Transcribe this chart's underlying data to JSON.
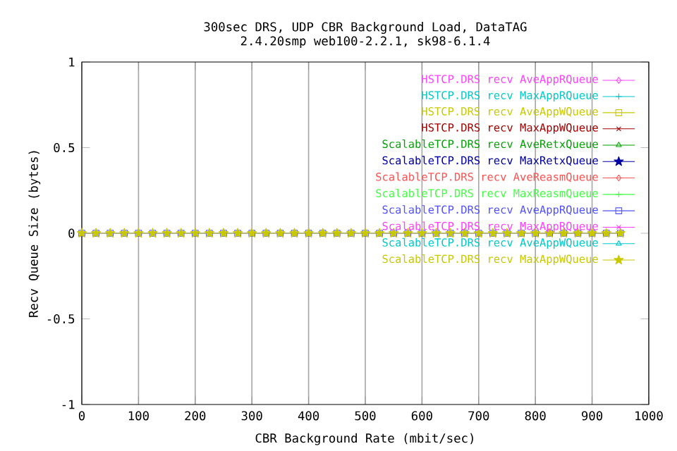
{
  "chart_data": {
    "type": "line",
    "title": "300sec DRS, UDP CBR Background Load, DataTAG",
    "subtitle": "2.4.20smp web100-2.2.1, sk98-6.1.4",
    "xlabel": "CBR Background Rate (mbit/sec)",
    "ylabel": "Recv Queue Size (bytes)",
    "x": [
      0,
      25,
      50,
      75,
      100,
      125,
      150,
      175,
      200,
      225,
      250,
      275,
      300,
      325,
      350,
      375,
      400,
      425,
      450,
      475,
      500,
      525,
      550,
      575,
      600,
      625,
      650,
      675,
      700,
      725,
      750,
      775,
      800,
      825,
      850,
      875,
      900,
      925,
      950
    ],
    "xlim": [
      0,
      1000
    ],
    "xticks": [
      0,
      100,
      200,
      300,
      400,
      500,
      600,
      700,
      800,
      900,
      1000
    ],
    "ylim": [
      -1,
      1
    ],
    "yticks": [
      -1,
      -0.5,
      0,
      0.5,
      1
    ],
    "grid": "x",
    "legend": "top right",
    "line_style": "solid",
    "series": [
      {
        "name": "HSTCP.DRS recv AveAppRQueue",
        "color": "#ff40ff",
        "marker": "diamond",
        "values": [
          null,
          null,
          null,
          null,
          null,
          null,
          null,
          null,
          null,
          null,
          null,
          null,
          null,
          null,
          null,
          null,
          null,
          null,
          null,
          null,
          null,
          null,
          null,
          null,
          null,
          null,
          null,
          null,
          null,
          null,
          null,
          null,
          null,
          null,
          null,
          null,
          null,
          null,
          null
        ]
      },
      {
        "name": "HSTCP.DRS recv MaxAppRQueue",
        "color": "#00c8c8",
        "marker": "plus",
        "values": [
          null,
          null,
          null,
          null,
          null,
          null,
          null,
          null,
          null,
          null,
          null,
          null,
          null,
          null,
          null,
          null,
          null,
          null,
          null,
          null,
          null,
          null,
          null,
          null,
          null,
          null,
          null,
          null,
          null,
          null,
          null,
          null,
          null,
          null,
          null,
          null,
          null,
          null,
          null
        ]
      },
      {
        "name": "HSTCP.DRS recv AveAppWQueue",
        "color": "#c8c800",
        "marker": "square",
        "values": [
          null,
          null,
          null,
          null,
          null,
          null,
          null,
          null,
          null,
          null,
          null,
          null,
          null,
          null,
          null,
          null,
          null,
          null,
          null,
          null,
          null,
          null,
          null,
          null,
          null,
          null,
          null,
          null,
          null,
          null,
          null,
          null,
          null,
          null,
          null,
          null,
          null,
          null,
          null
        ]
      },
      {
        "name": "HSTCP.DRS recv MaxAppWQueue",
        "color": "#a00000",
        "marker": "cross",
        "values": [
          null,
          null,
          null,
          null,
          null,
          null,
          null,
          null,
          null,
          null,
          null,
          null,
          null,
          null,
          null,
          null,
          null,
          null,
          null,
          null,
          null,
          null,
          null,
          null,
          null,
          null,
          null,
          null,
          null,
          null,
          null,
          null,
          null,
          null,
          null,
          null,
          null,
          null,
          null
        ]
      },
      {
        "name": "ScalableTCP.DRS recv AveRetxQueue",
        "color": "#00a000",
        "marker": "triangle",
        "values": [
          null,
          null,
          null,
          null,
          null,
          null,
          null,
          null,
          null,
          null,
          null,
          null,
          null,
          null,
          null,
          null,
          null,
          null,
          null,
          null,
          null,
          null,
          null,
          null,
          null,
          null,
          null,
          null,
          null,
          null,
          null,
          null,
          null,
          null,
          null,
          null,
          null,
          null,
          null
        ]
      },
      {
        "name": "ScalableTCP.DRS recv MaxRetxQueue",
        "color": "#0000a0",
        "marker": "star",
        "values": [
          null,
          null,
          null,
          null,
          null,
          null,
          null,
          null,
          null,
          null,
          null,
          null,
          null,
          null,
          null,
          null,
          null,
          null,
          null,
          null,
          null,
          null,
          null,
          null,
          null,
          null,
          null,
          null,
          null,
          null,
          null,
          null,
          null,
          null,
          null,
          null,
          null,
          null,
          null
        ]
      },
      {
        "name": "ScalableTCP.DRS recv AveReasmQueue",
        "color": "#ff5050",
        "marker": "diamond",
        "values": [
          null,
          null,
          null,
          null,
          null,
          null,
          null,
          null,
          null,
          null,
          null,
          null,
          null,
          null,
          null,
          null,
          null,
          null,
          null,
          null,
          null,
          null,
          null,
          null,
          null,
          null,
          null,
          null,
          null,
          null,
          null,
          null,
          null,
          null,
          null,
          null,
          null,
          null,
          null
        ]
      },
      {
        "name": "ScalableTCP.DRS recv MaxReasmQueue",
        "color": "#40ff40",
        "marker": "plus",
        "values": [
          null,
          null,
          null,
          null,
          null,
          null,
          null,
          null,
          null,
          null,
          null,
          null,
          null,
          null,
          null,
          null,
          null,
          null,
          null,
          null,
          null,
          null,
          null,
          null,
          null,
          null,
          null,
          null,
          null,
          null,
          null,
          null,
          null,
          null,
          null,
          null,
          null,
          null,
          null
        ]
      },
      {
        "name": "ScalableTCP.DRS recv AveAppRQueue",
        "color": "#5050ff",
        "marker": "square",
        "values": [
          0,
          0,
          0,
          0,
          0,
          0,
          0,
          0,
          0,
          0,
          0,
          0,
          0,
          0,
          0,
          0,
          0,
          0,
          0,
          0,
          0,
          0,
          0,
          0,
          0,
          0,
          0,
          0,
          0,
          0,
          0,
          0,
          0,
          0,
          0,
          0,
          0,
          0,
          0
        ]
      },
      {
        "name": "ScalableTCP.DRS recv MaxAppRQueue",
        "color": "#ff40ff",
        "marker": "cross",
        "values": [
          null,
          null,
          null,
          null,
          null,
          null,
          null,
          null,
          null,
          null,
          null,
          null,
          null,
          null,
          null,
          null,
          null,
          null,
          null,
          null,
          null,
          null,
          null,
          null,
          null,
          null,
          null,
          null,
          null,
          null,
          null,
          null,
          null,
          null,
          null,
          null,
          null,
          null,
          null
        ]
      },
      {
        "name": "ScalableTCP.DRS recv AveAppWQueue",
        "color": "#00c8c8",
        "marker": "triangle",
        "values": [
          null,
          null,
          null,
          null,
          null,
          null,
          null,
          null,
          null,
          null,
          null,
          null,
          null,
          null,
          null,
          null,
          null,
          null,
          null,
          null,
          null,
          null,
          null,
          null,
          null,
          null,
          null,
          null,
          null,
          null,
          null,
          null,
          null,
          null,
          null,
          null,
          null,
          null,
          null
        ]
      },
      {
        "name": "ScalableTCP.DRS recv MaxAppWQueue",
        "color": "#c8c800",
        "marker": "star",
        "values": [
          0,
          0,
          0,
          0,
          0,
          0,
          0,
          0,
          0,
          0,
          0,
          0,
          0,
          0,
          0,
          0,
          0,
          0,
          0,
          0,
          0,
          0,
          0,
          0,
          0,
          0,
          0,
          0,
          0,
          0,
          0,
          0,
          0,
          0,
          0,
          0,
          0,
          0,
          0
        ]
      }
    ]
  }
}
